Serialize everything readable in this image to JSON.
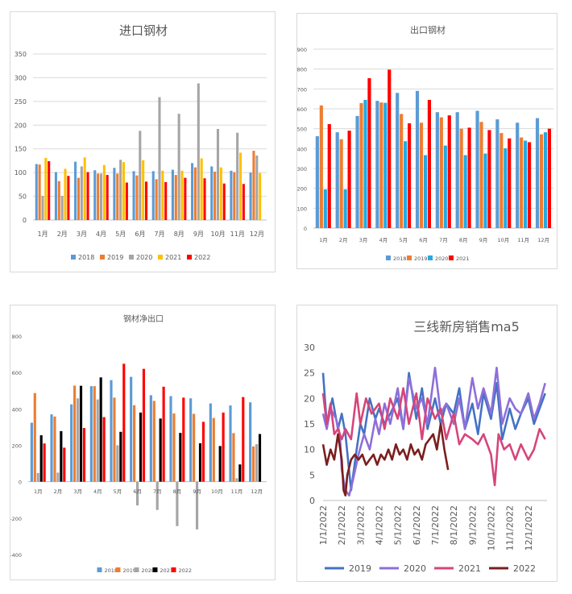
{
  "chart_data": [
    {
      "type": "bar",
      "title": "进口钢材",
      "categories": [
        "1月",
        "2月",
        "3月",
        "4月",
        "5月",
        "6月",
        "7月",
        "8月",
        "9月",
        "10月",
        "11月",
        "12月"
      ],
      "ylim": [
        0,
        350
      ],
      "yticks": [
        "0",
        "50",
        "100",
        "150",
        "200",
        "250",
        "300",
        "350"
      ],
      "grid": true,
      "legend": "bottom",
      "series": [
        {
          "name": "2018",
          "color": "#5B9BD5",
          "values": [
            118,
            101,
            123,
            105,
            110,
            103,
            103,
            106,
            120,
            113,
            104,
            100
          ]
        },
        {
          "name": "2019",
          "color": "#ED7D31",
          "values": [
            117,
            82,
            89,
            98,
            98,
            94,
            86,
            95,
            111,
            102,
            101,
            146
          ]
        },
        {
          "name": "2020",
          "color": "#A5A5A5",
          "values": [
            51,
            51,
            113,
            98,
            127,
            188,
            259,
            224,
            288,
            192,
            184,
            136
          ]
        },
        {
          "name": "2021",
          "color": "#FFC000",
          "values": [
            131,
            108,
            132,
            116,
            122,
            126,
            104,
            104,
            130,
            111,
            142,
            99
          ]
        },
        {
          "name": "2022",
          "color": "#FF0000",
          "values": [
            124,
            93,
            101,
            95,
            79,
            81,
            80,
            89,
            88,
            77,
            76,
            null
          ]
        }
      ]
    },
    {
      "type": "bar",
      "title": "出口钢材",
      "categories": [
        "1月",
        "2月",
        "3月",
        "4月",
        "5月",
        "6月",
        "7月",
        "8月",
        "9月",
        "10月",
        "11月",
        "12月"
      ],
      "ylim": [
        0,
        900
      ],
      "yticks": [
        "0",
        "100",
        "200",
        "300",
        "400",
        "500",
        "600",
        "700",
        "800",
        "900"
      ],
      "grid": true,
      "legend": "bottom",
      "series": [
        {
          "name": "2018",
          "color": "#5B9BD5",
          "values": [
            462,
            482,
            564,
            640,
            680,
            690,
            583,
            583,
            590,
            547,
            530,
            553
          ]
        },
        {
          "name": "2019",
          "color": "#ED7D31",
          "values": [
            617,
            447,
            629,
            632,
            574,
            530,
            557,
            500,
            534,
            478,
            456,
            472
          ]
        },
        {
          "name": "2020",
          "color": "#26A8E0",
          "values": [
            195,
            195,
            645,
            630,
            437,
            367,
            415,
            367,
            375,
            401,
            440,
            482
          ]
        },
        {
          "name": "2021",
          "color": "#FF0000",
          "values": [
            523,
            490,
            754,
            797,
            527,
            645,
            567,
            505,
            493,
            451,
            432,
            500
          ]
        }
      ]
    },
    {
      "type": "bar",
      "title": "钢材净出口",
      "categories": [
        "1月",
        "2月",
        "3月",
        "4月",
        "5月",
        "6月",
        "7月",
        "8月",
        "9月",
        "10月",
        "11月",
        "12月"
      ],
      "ylim": [
        -400,
        800
      ],
      "yticks": [
        "-400",
        "-200",
        "0",
        "200",
        "400",
        "600",
        "800"
      ],
      "grid": false,
      "legend": "bottom",
      "series": [
        {
          "name": "2018",
          "color": "#5B9BD5",
          "values": [
            324,
            370,
            425,
            525,
            558,
            576,
            475,
            470,
            458,
            430,
            419,
            436
          ]
        },
        {
          "name": "2019",
          "color": "#ED7D31",
          "values": [
            487,
            358,
            528,
            525,
            462,
            420,
            444,
            375,
            373,
            350,
            267,
            194
          ]
        },
        {
          "name": "2020",
          "color": "#A5A5A5",
          "values": [
            48,
            50,
            458,
            452,
            200,
            -130,
            -155,
            -244,
            -262,
            null,
            19,
            206
          ]
        },
        {
          "name": "2021",
          "color": "#000000",
          "values": [
            255,
            278,
            527,
            573,
            274,
            380,
            347,
            268,
            211,
            196,
            95,
            262
          ]
        },
        {
          "name": "2022",
          "color": "#FF0000",
          "values": [
            210,
            187,
            295,
            355,
            648,
            620,
            522,
            462,
            329,
            380,
            465,
            null
          ]
        }
      ]
    },
    {
      "type": "line",
      "title": "三线新房销售ma5",
      "ylim": [
        0,
        30
      ],
      "yticks": [
        "0",
        "5",
        "10",
        "15",
        "20",
        "25",
        "30"
      ],
      "xticks": [
        "1/1/2022",
        "2/1/2022",
        "3/1/2022",
        "4/1/2022",
        "5/1/2022",
        "6/1/2022",
        "7/1/2022",
        "8/1/2022",
        "9/1/2022",
        "10/1/2022",
        "11/1/2022",
        "12/1/2022"
      ],
      "grid": false,
      "legend": "bottom",
      "series": [
        {
          "name": "2019",
          "color": "#4472C4",
          "x_month": [
            0,
            0.2,
            0.5,
            0.8,
            1.0,
            1.2,
            1.5,
            1.8,
            2.0,
            2.2,
            2.5,
            2.8,
            3.0,
            3.3,
            3.6,
            4.0,
            4.3,
            4.6,
            5.0,
            5.3,
            5.6,
            6.0,
            6.3,
            6.6,
            7.0,
            7.3,
            7.6,
            8.0,
            8.3,
            8.6,
            9.0,
            9.3,
            9.6,
            10.0,
            10.3,
            10.6,
            11.0,
            11.3,
            11.6,
            11.9
          ],
          "values": [
            25,
            15,
            20,
            14,
            17,
            13,
            2,
            10,
            15,
            13,
            20,
            16,
            18,
            15,
            17,
            20,
            14,
            25,
            16,
            22,
            14,
            20,
            15,
            19,
            17,
            22,
            14,
            19,
            13,
            21,
            16,
            23,
            12,
            18,
            14,
            17,
            20,
            15,
            18,
            21
          ]
        },
        {
          "name": "2020",
          "color": "#8E6FD8",
          "x_month": [
            0,
            0.2,
            0.4,
            0.7,
            0.9,
            1.0,
            1.2,
            1.4,
            1.6,
            1.9,
            2.2,
            2.5,
            2.8,
            3.0,
            3.3,
            3.6,
            4.0,
            4.3,
            4.6,
            5.0,
            5.3,
            5.6,
            6.0,
            6.3,
            6.6,
            7.0,
            7.3,
            7.6,
            8.0,
            8.3,
            8.6,
            9.0,
            9.3,
            9.6,
            10.0,
            10.3,
            10.6,
            11.0,
            11.3,
            11.6,
            11.9
          ],
          "values": [
            17,
            14,
            18,
            16,
            13,
            6,
            2,
            1,
            4,
            9,
            13,
            10,
            16,
            13,
            19,
            15,
            22,
            14,
            24,
            18,
            20,
            15,
            26,
            17,
            19,
            15,
            20,
            14,
            24,
            18,
            22,
            17,
            26,
            15,
            20,
            18,
            17,
            21,
            16,
            19,
            23
          ]
        },
        {
          "name": "2021",
          "color": "#D6457A",
          "x_month": [
            0,
            0.2,
            0.4,
            0.6,
            0.8,
            1.0,
            1.2,
            1.5,
            1.8,
            2.0,
            2.3,
            2.6,
            3.0,
            3.3,
            3.6,
            4.0,
            4.3,
            4.6,
            5.0,
            5.3,
            5.6,
            6.0,
            6.3,
            6.6,
            7.0,
            7.3,
            7.6,
            8.0,
            8.3,
            8.6,
            9.0,
            9.2,
            9.4,
            9.7,
            10.0,
            10.3,
            10.6,
            11.0,
            11.3,
            11.6,
            11.9
          ],
          "values": [
            21,
            15,
            19,
            13,
            14,
            12,
            14,
            12,
            21,
            15,
            20,
            17,
            19,
            14,
            20,
            16,
            22,
            15,
            21,
            12,
            20,
            16,
            18,
            12,
            17,
            11,
            13,
            12,
            11,
            13,
            9,
            3,
            13,
            10,
            11,
            8,
            11,
            8,
            10,
            14,
            12
          ]
        },
        {
          "name": "2022",
          "color": "#7B1E1E",
          "x_month": [
            0,
            0.2,
            0.4,
            0.6,
            0.8,
            1.0,
            1.1,
            1.2,
            1.3,
            1.5,
            1.7,
            1.9,
            2.1,
            2.3,
            2.5,
            2.7,
            2.9,
            3.1,
            3.3,
            3.5,
            3.7,
            3.9,
            4.1,
            4.3,
            4.5,
            4.7,
            4.9,
            5.1,
            5.3,
            5.5,
            5.7,
            5.9,
            6.1,
            6.3,
            6.5,
            6.7
          ],
          "values": [
            11,
            7,
            10,
            8,
            13,
            8,
            2,
            1,
            5,
            8,
            9,
            8,
            9,
            7,
            8,
            9,
            7,
            9,
            8,
            10,
            8,
            11,
            9,
            10,
            8,
            11,
            9,
            10,
            8,
            11,
            12,
            13,
            10,
            15,
            10,
            6
          ]
        }
      ]
    }
  ]
}
